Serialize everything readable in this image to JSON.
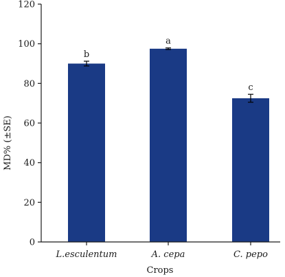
{
  "chart_data": {
    "type": "bar",
    "title": "",
    "xlabel": "Crops",
    "ylabel": "MD% (±SE)",
    "ylim": [
      0,
      120
    ],
    "yticks": [
      "0",
      "20",
      "40",
      "60",
      "80",
      "100",
      "120"
    ],
    "categories": [
      "L.esculentum",
      "A. cepa",
      "C. pepo"
    ],
    "values": [
      90,
      97.5,
      72.5
    ],
    "errors": [
      1.2,
      0.4,
      2.0
    ],
    "significance": [
      "b",
      "a",
      "c"
    ],
    "bar_color": "#1a3a85",
    "grid": false
  }
}
